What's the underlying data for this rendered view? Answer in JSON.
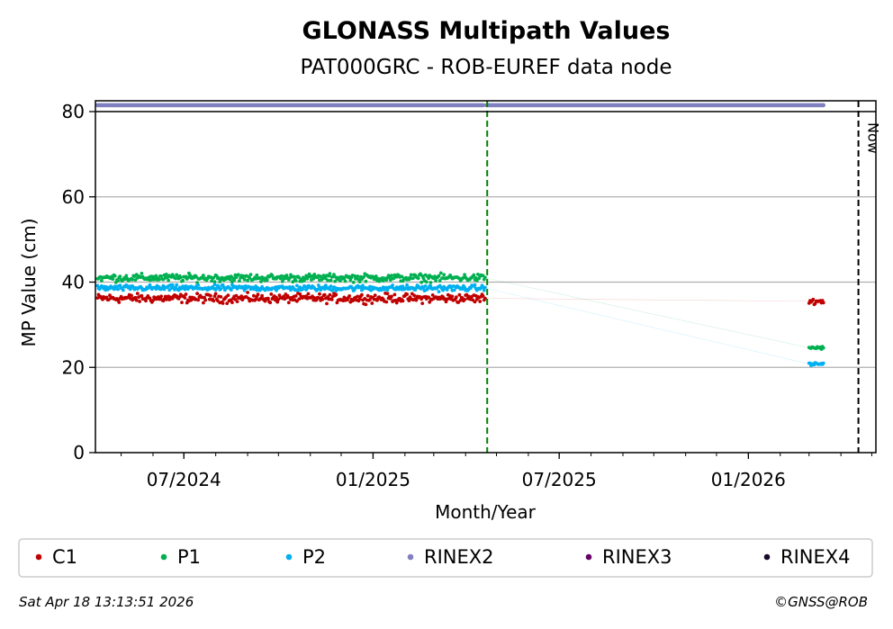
{
  "chart_data": {
    "type": "scatter",
    "title": "GLONASS Multipath Values",
    "subtitle": "PAT000GRC - ROB-EUREF data node",
    "xlabel": "Month/Year",
    "ylabel": "MP Value (cm)",
    "ylim": [
      0,
      80
    ],
    "yticks": [
      0,
      20,
      40,
      60,
      80
    ],
    "xlim": [
      "2024-04-06",
      "2026-05-05"
    ],
    "xticks": [
      {
        "date": "2024-07-01",
        "label": "07/2024"
      },
      {
        "date": "2025-01-01",
        "label": "01/2025"
      },
      {
        "date": "2025-07-01",
        "label": "07/2025"
      },
      {
        "date": "2026-01-01",
        "label": "01/2026"
      }
    ],
    "grid": "y",
    "legend_position": "bottom",
    "series": [
      {
        "name": "C1",
        "color": "#c00000",
        "segments": [
          {
            "start": "2024-04-08",
            "end": "2025-04-20",
            "mean": 36.2,
            "spread": 1.4
          },
          {
            "start": "2026-03-01",
            "end": "2026-03-15",
            "mean": 35.5,
            "spread": 0.8
          }
        ]
      },
      {
        "name": "P1",
        "color": "#00b050",
        "segments": [
          {
            "start": "2024-04-08",
            "end": "2025-04-20",
            "mean": 41.0,
            "spread": 1.2
          },
          {
            "start": "2026-03-01",
            "end": "2026-03-15",
            "mean": 24.6,
            "spread": 0.5
          }
        ]
      },
      {
        "name": "P2",
        "color": "#00b0f0",
        "segments": [
          {
            "start": "2024-04-08",
            "end": "2025-04-20",
            "mean": 38.6,
            "spread": 0.9
          },
          {
            "start": "2026-03-01",
            "end": "2026-03-15",
            "mean": 20.8,
            "spread": 0.4
          }
        ]
      },
      {
        "name": "RINEX2",
        "color": "#8080c0",
        "segments": [
          {
            "start": "2024-04-08",
            "end": "2025-04-18",
            "mean": 81.5,
            "spread": 0
          },
          {
            "start": "2025-04-21",
            "end": "2026-03-15",
            "mean": 81.5,
            "spread": 0
          }
        ]
      },
      {
        "name": "RINEX3",
        "color": "#660066",
        "segments": []
      },
      {
        "name": "RINEX4",
        "color": "#1a0a2a",
        "segments": []
      }
    ],
    "vlines": [
      {
        "date": "2025-04-22",
        "color": "#008000"
      },
      {
        "date": "2026-04-18",
        "color": "#000000",
        "label": "Now"
      }
    ]
  },
  "footer": {
    "timestamp": "Sat Apr 18 13:13:51 2026",
    "copyright": "©GNSS@ROB"
  }
}
